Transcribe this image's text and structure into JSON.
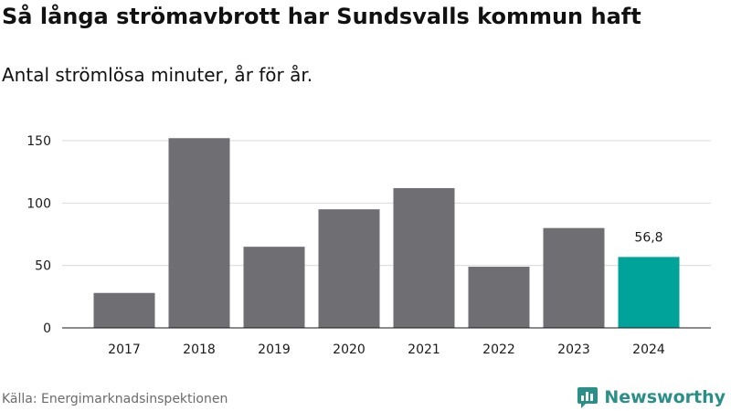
{
  "title": "Så långa strömavbrott har Sundsvalls kommun haft",
  "subtitle": "Antal strömlösa minuter, år för år.",
  "source": "Källa: Energimarknadsinspektionen",
  "brand": {
    "name": "Newsworthy",
    "icon": "newsworthy-logo-icon",
    "color": "#2a8f86"
  },
  "chart_data": {
    "type": "bar",
    "categories": [
      "2017",
      "2018",
      "2019",
      "2020",
      "2021",
      "2022",
      "2023",
      "2024"
    ],
    "values": [
      28,
      152,
      65,
      95,
      112,
      49,
      80,
      56.8
    ],
    "highlight_index": 7,
    "highlight_label": "56,8",
    "ylim": [
      0,
      150
    ],
    "yticks": [
      0,
      50,
      100,
      150
    ],
    "grid": true,
    "colors": {
      "bar": "#6f6e73",
      "highlight": "#00a39a",
      "grid": "#d9d9d9"
    }
  }
}
